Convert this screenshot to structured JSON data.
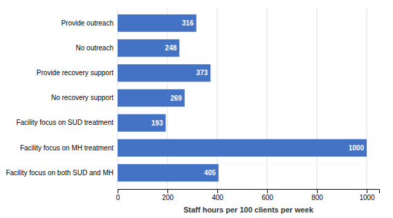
{
  "chart_data": {
    "type": "bar",
    "orientation": "horizontal",
    "categories": [
      "Provide outreach",
      "No outreach",
      "Provide recovery support",
      "No recovery support",
      "Facility focus on SUD treatment",
      "Facility focus on MH treatment",
      "Facility focus on both SUD and MH"
    ],
    "values": [
      316,
      248,
      373,
      269,
      193,
      1000,
      405
    ],
    "color": "#4472C4",
    "x_label": "Staff hours per 100 clients per week",
    "xlim": [
      0,
      1050
    ],
    "xticks": [
      0,
      200,
      400,
      600,
      800,
      1000
    ],
    "grid": true,
    "data_labels": true
  }
}
